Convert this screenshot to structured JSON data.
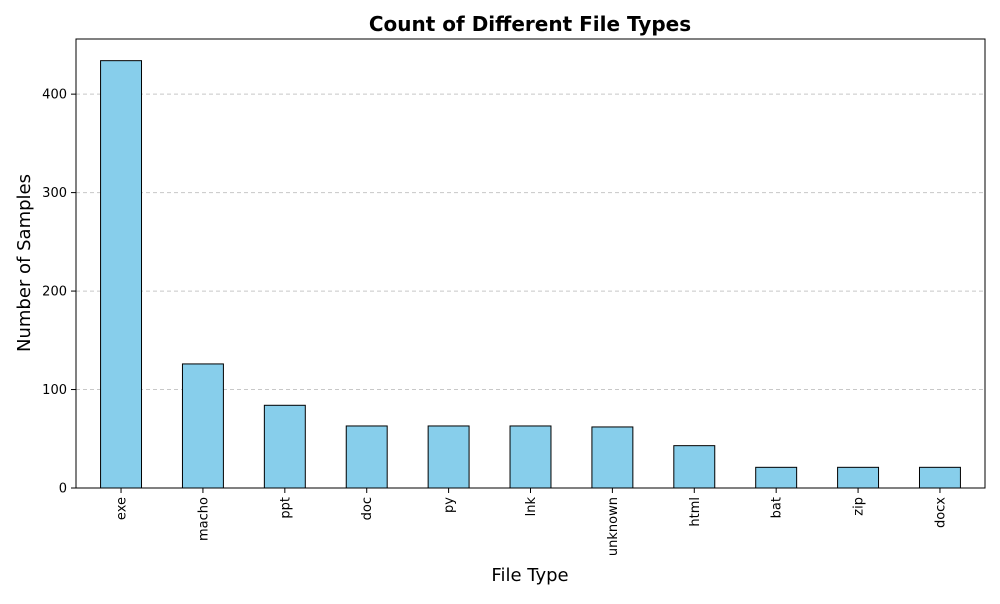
{
  "chart_data": {
    "type": "bar",
    "title": "Count of Different File Types",
    "xlabel": "File Type",
    "ylabel": "Number of Samples",
    "categories": [
      "exe",
      "macho",
      "ppt",
      "doc",
      "py",
      "lnk",
      "unknown",
      "html",
      "bat",
      "zip",
      "docx"
    ],
    "values": [
      434,
      126,
      84,
      63,
      63,
      63,
      62,
      43,
      21,
      21,
      21
    ],
    "ylim": [
      0,
      456
    ],
    "yticks": [
      0,
      100,
      200,
      300,
      400
    ],
    "grid": {
      "x": false,
      "y": true,
      "style": "dashed"
    },
    "x_tick_rotation": "vertical",
    "colors": {
      "bar_fill": "#87CEEB",
      "bar_edge": "#000000",
      "grid": "#c8c8c8"
    }
  }
}
